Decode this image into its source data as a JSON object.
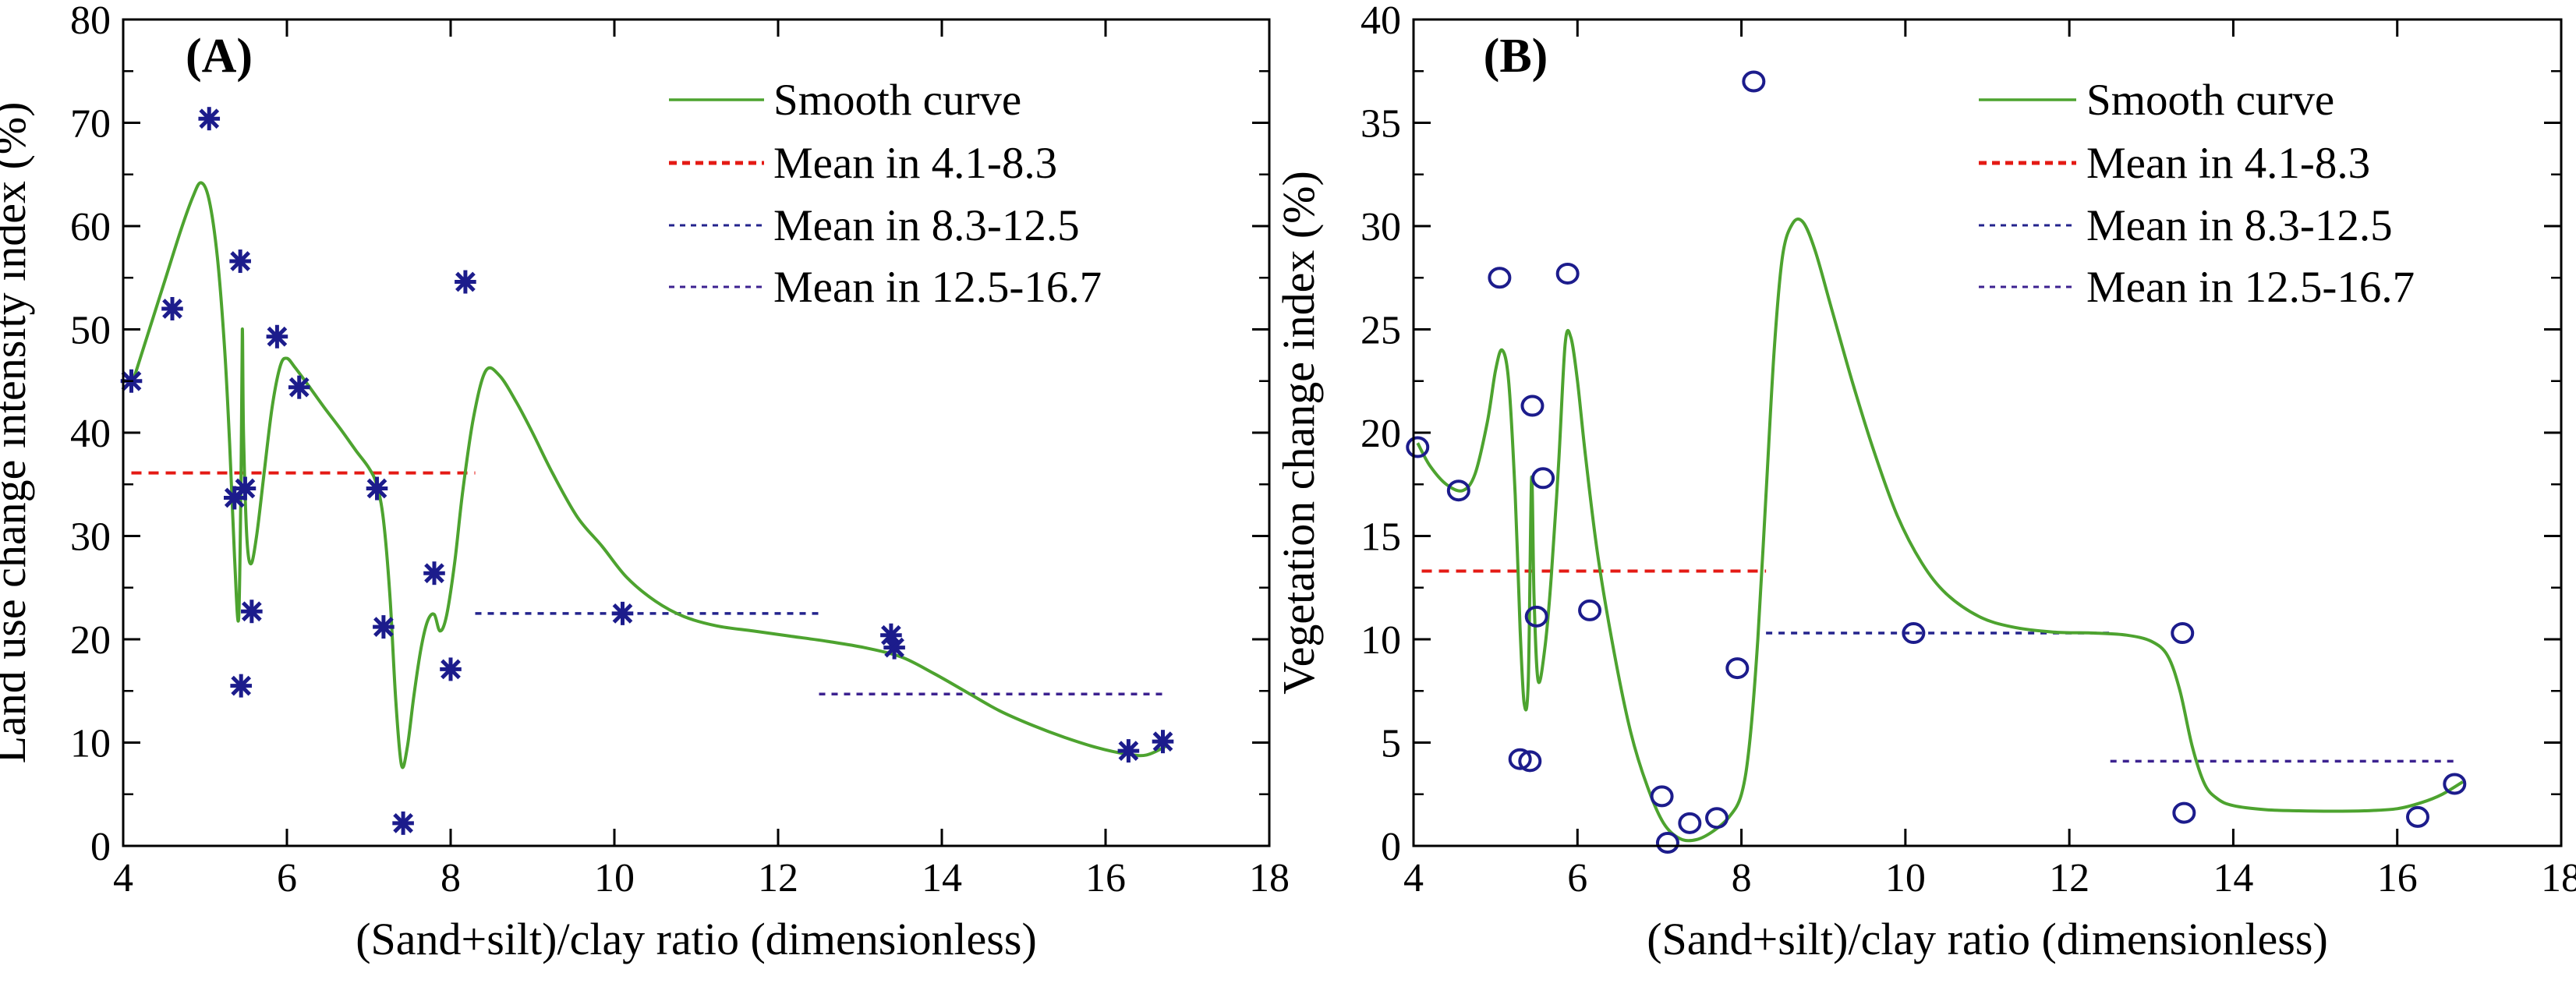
{
  "figure": {
    "background": "#ffffff",
    "xlabel": "(Sand+silt)/clay ratio (dimensionless)"
  },
  "palette": {
    "curve_green": "#4DA32F",
    "marker_navy": "#1C1C8C",
    "mean1_red": "#E41A14",
    "mean2_navy": "#23238D",
    "mean3_navy": "#3C2290",
    "axis_black": "#000000"
  },
  "legend_labels": [
    "Smooth curve",
    "Mean in 4.1-8.3",
    "Mean in 8.3-12.5",
    "Mean in 12.5-16.7"
  ],
  "chart_data": [
    {
      "type": "scatter",
      "panel_label": "(A)",
      "xlabel": "(Sand+silt)/clay ratio (dimensionless)",
      "ylabel": "Land use change intensity index (%)",
      "xlim": [
        4,
        18
      ],
      "ylim": [
        0,
        80
      ],
      "xticks": [
        4,
        6,
        8,
        10,
        12,
        14,
        16,
        18
      ],
      "yticks": [
        0,
        10,
        20,
        30,
        40,
        50,
        60,
        70,
        80
      ],
      "y_minor_step": 5,
      "grid": false,
      "legend_position": "upper right inside",
      "marker": "asterisk",
      "legend": [
        "Smooth curve",
        "Mean in 4.1-8.3",
        "Mean in 8.3-12.5",
        "Mean in 12.5-16.7"
      ],
      "points": [
        [
          4.1,
          45.0
        ],
        [
          4.6,
          52.0
        ],
        [
          5.05,
          70.4
        ],
        [
          5.36,
          33.7
        ],
        [
          5.49,
          34.6
        ],
        [
          5.43,
          56.6
        ],
        [
          5.57,
          22.7
        ],
        [
          5.44,
          15.5
        ],
        [
          5.88,
          49.3
        ],
        [
          6.15,
          44.4
        ],
        [
          7.1,
          34.6
        ],
        [
          7.18,
          21.2
        ],
        [
          7.42,
          2.2
        ],
        [
          7.8,
          26.4
        ],
        [
          8.0,
          17.1
        ],
        [
          8.18,
          54.6
        ],
        [
          10.1,
          22.5
        ],
        [
          13.38,
          20.4
        ],
        [
          13.42,
          19.2
        ],
        [
          16.28,
          9.2
        ],
        [
          16.7,
          10.1
        ]
      ],
      "smooth_curve": [
        [
          4.1,
          44.5
        ],
        [
          4.3,
          49.5
        ],
        [
          4.5,
          54.5
        ],
        [
          4.7,
          59.5
        ],
        [
          4.85,
          62.8
        ],
        [
          4.95,
          64.2
        ],
        [
          5.05,
          62.5
        ],
        [
          5.15,
          57.0
        ],
        [
          5.24,
          48.0
        ],
        [
          5.3,
          39.0
        ],
        [
          5.36,
          28.0
        ],
        [
          5.41,
          22.0
        ],
        [
          5.44,
          36.0
        ],
        [
          5.455,
          50.0
        ],
        [
          5.47,
          40.0
        ],
        [
          5.51,
          30.0
        ],
        [
          5.56,
          27.3
        ],
        [
          5.63,
          30.0
        ],
        [
          5.72,
          36.0
        ],
        [
          5.82,
          42.5
        ],
        [
          5.92,
          46.5
        ],
        [
          6.0,
          47.2
        ],
        [
          6.1,
          46.3
        ],
        [
          6.25,
          44.7
        ],
        [
          6.45,
          42.5
        ],
        [
          6.65,
          40.4
        ],
        [
          6.85,
          38.2
        ],
        [
          7.0,
          36.6
        ],
        [
          7.1,
          34.9
        ],
        [
          7.18,
          31.5
        ],
        [
          7.26,
          24.0
        ],
        [
          7.33,
          14.0
        ],
        [
          7.4,
          7.8
        ],
        [
          7.47,
          9.5
        ],
        [
          7.55,
          14.5
        ],
        [
          7.64,
          19.2
        ],
        [
          7.72,
          21.8
        ],
        [
          7.8,
          22.4
        ],
        [
          7.87,
          20.8
        ],
        [
          7.95,
          22.3
        ],
        [
          8.05,
          27.5
        ],
        [
          8.15,
          34.5
        ],
        [
          8.28,
          41.5
        ],
        [
          8.43,
          46.0
        ],
        [
          8.6,
          45.5
        ],
        [
          8.8,
          43.0
        ],
        [
          9.0,
          40.0
        ],
        [
          9.25,
          36.0
        ],
        [
          9.55,
          31.8
        ],
        [
          9.85,
          29.0
        ],
        [
          10.15,
          26.0
        ],
        [
          10.5,
          23.7
        ],
        [
          10.85,
          22.2
        ],
        [
          11.25,
          21.3
        ],
        [
          11.7,
          20.8
        ],
        [
          12.15,
          20.3
        ],
        [
          12.6,
          19.8
        ],
        [
          13.05,
          19.2
        ],
        [
          13.5,
          18.3
        ],
        [
          13.9,
          16.7
        ],
        [
          14.3,
          14.9
        ],
        [
          14.7,
          13.1
        ],
        [
          15.1,
          11.7
        ],
        [
          15.5,
          10.5
        ],
        [
          15.9,
          9.5
        ],
        [
          16.25,
          8.9
        ],
        [
          16.5,
          8.8
        ],
        [
          16.75,
          9.7
        ]
      ],
      "mean_lines": [
        {
          "label": "Mean in 4.1-8.3",
          "x_range": [
            4.1,
            8.3
          ],
          "value": 36.1,
          "color_key": "mean1_red",
          "dash": "13 9"
        },
        {
          "label": "Mean in 8.3-12.5",
          "x_range": [
            8.3,
            12.5
          ],
          "value": 22.5,
          "color_key": "mean2_navy",
          "dash": "8 8"
        },
        {
          "label": "Mean in 12.5-16.7",
          "x_range": [
            12.5,
            16.7
          ],
          "value": 14.7,
          "color_key": "mean3_navy",
          "dash": "8 8"
        }
      ]
    },
    {
      "type": "scatter",
      "panel_label": "(B)",
      "xlabel": "(Sand+silt)/clay ratio (dimensionless)",
      "ylabel": "Vegetation change index (%)",
      "xlim": [
        4,
        18
      ],
      "ylim": [
        0,
        40
      ],
      "xticks": [
        4,
        6,
        8,
        10,
        12,
        14,
        16,
        18
      ],
      "yticks": [
        0,
        5,
        10,
        15,
        20,
        25,
        30,
        35,
        40
      ],
      "y_minor_step": 2.5,
      "grid": false,
      "legend_position": "upper right inside",
      "marker": "circle",
      "legend": [
        "Smooth curve",
        "Mean in 4.1-8.3",
        "Mean in 8.3-12.5",
        "Mean in 12.5-16.7"
      ],
      "points": [
        [
          4.05,
          19.3
        ],
        [
          4.55,
          17.2
        ],
        [
          5.05,
          27.5
        ],
        [
          5.3,
          4.2
        ],
        [
          5.42,
          4.1
        ],
        [
          5.45,
          21.3
        ],
        [
          5.5,
          11.1
        ],
        [
          5.58,
          17.8
        ],
        [
          5.88,
          27.7
        ],
        [
          6.15,
          11.4
        ],
        [
          7.03,
          2.4
        ],
        [
          7.1,
          0.15
        ],
        [
          7.37,
          1.1
        ],
        [
          7.7,
          1.35
        ],
        [
          7.95,
          8.6
        ],
        [
          8.15,
          37.0
        ],
        [
          10.1,
          10.3
        ],
        [
          13.38,
          10.3
        ],
        [
          13.4,
          1.6
        ],
        [
          16.25,
          1.4
        ],
        [
          16.7,
          3.0
        ]
      ],
      "smooth_curve": [
        [
          4.05,
          19.5
        ],
        [
          4.2,
          18.4
        ],
        [
          4.4,
          17.5
        ],
        [
          4.6,
          17.2
        ],
        [
          4.75,
          18.0
        ],
        [
          4.9,
          20.5
        ],
        [
          5.0,
          23.0
        ],
        [
          5.08,
          24.0
        ],
        [
          5.16,
          22.5
        ],
        [
          5.24,
          17.0
        ],
        [
          5.3,
          10.5
        ],
        [
          5.35,
          6.9
        ],
        [
          5.4,
          8.0
        ],
        [
          5.44,
          17.8
        ],
        [
          5.47,
          12.0
        ],
        [
          5.52,
          8.0
        ],
        [
          5.6,
          9.5
        ],
        [
          5.68,
          13.0
        ],
        [
          5.77,
          18.5
        ],
        [
          5.85,
          24.3
        ],
        [
          5.92,
          24.6
        ],
        [
          6.0,
          22.5
        ],
        [
          6.1,
          18.8
        ],
        [
          6.25,
          14.0
        ],
        [
          6.45,
          9.3
        ],
        [
          6.65,
          5.5
        ],
        [
          6.85,
          2.9
        ],
        [
          7.05,
          1.1
        ],
        [
          7.25,
          0.35
        ],
        [
          7.45,
          0.3
        ],
        [
          7.65,
          0.7
        ],
        [
          7.85,
          1.4
        ],
        [
          8.0,
          2.5
        ],
        [
          8.1,
          5.0
        ],
        [
          8.2,
          10.0
        ],
        [
          8.3,
          17.0
        ],
        [
          8.4,
          24.0
        ],
        [
          8.5,
          28.5
        ],
        [
          8.62,
          30.1
        ],
        [
          8.75,
          30.2
        ],
        [
          8.9,
          28.8
        ],
        [
          9.1,
          26.0
        ],
        [
          9.35,
          22.5
        ],
        [
          9.6,
          19.3
        ],
        [
          9.9,
          16.0
        ],
        [
          10.2,
          13.7
        ],
        [
          10.5,
          12.2
        ],
        [
          10.9,
          11.1
        ],
        [
          11.3,
          10.6
        ],
        [
          11.8,
          10.35
        ],
        [
          12.3,
          10.3
        ],
        [
          12.7,
          10.2
        ],
        [
          13.0,
          9.9
        ],
        [
          13.2,
          9.2
        ],
        [
          13.35,
          7.5
        ],
        [
          13.5,
          4.8
        ],
        [
          13.65,
          3.0
        ],
        [
          13.8,
          2.3
        ],
        [
          14.0,
          1.95
        ],
        [
          14.4,
          1.75
        ],
        [
          14.8,
          1.7
        ],
        [
          15.2,
          1.68
        ],
        [
          15.6,
          1.7
        ],
        [
          16.0,
          1.8
        ],
        [
          16.3,
          2.1
        ],
        [
          16.55,
          2.5
        ],
        [
          16.8,
          3.1
        ]
      ],
      "mean_lines": [
        {
          "label": "Mean in 4.1-8.3",
          "x_range": [
            4.1,
            8.3
          ],
          "value": 13.3,
          "color_key": "mean1_red",
          "dash": "13 9"
        },
        {
          "label": "Mean in 8.3-12.5",
          "x_range": [
            8.3,
            12.5
          ],
          "value": 10.3,
          "color_key": "mean2_navy",
          "dash": "8 8"
        },
        {
          "label": "Mean in 12.5-16.7",
          "x_range": [
            12.5,
            16.7
          ],
          "value": 4.1,
          "color_key": "mean3_navy",
          "dash": "8 8"
        }
      ]
    }
  ]
}
